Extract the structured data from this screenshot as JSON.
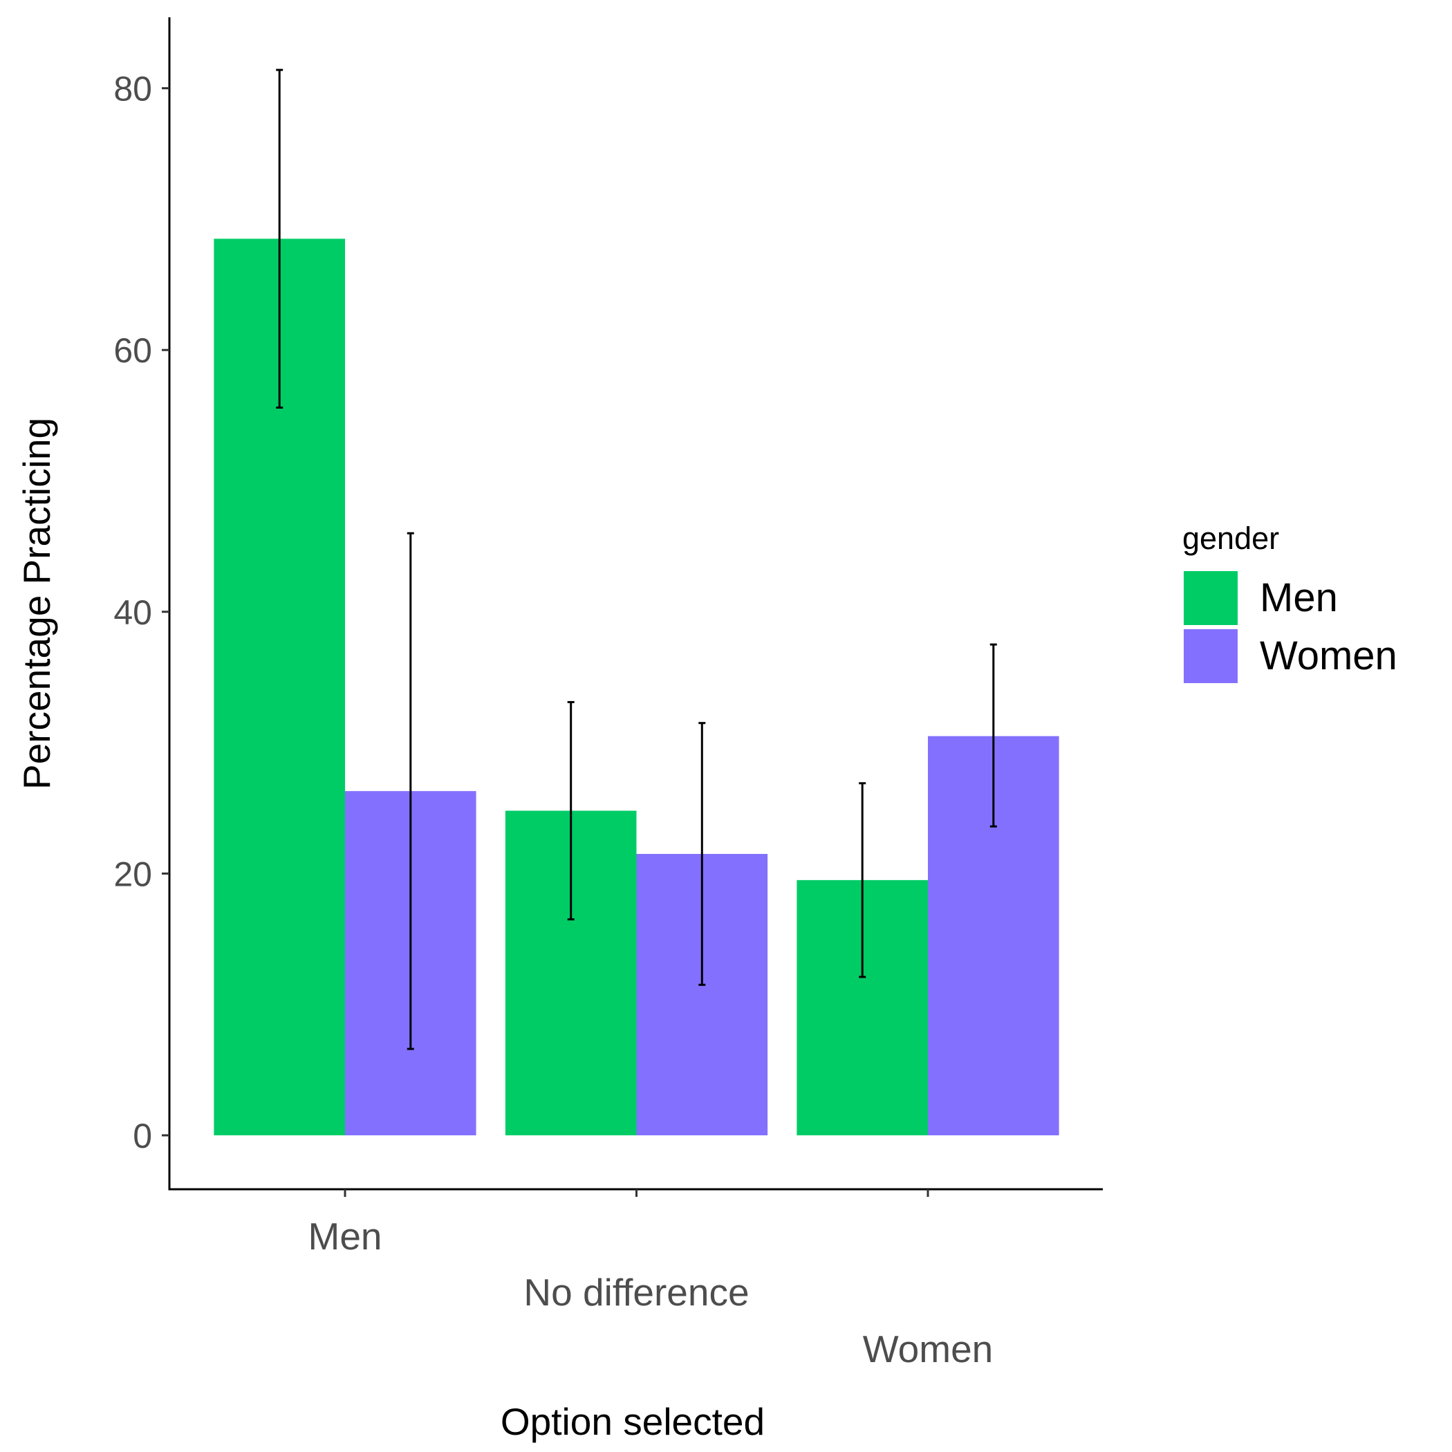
{
  "chart_data": {
    "type": "bar",
    "title": "",
    "xlabel": "Option selected",
    "ylabel": "Percentage Practicing",
    "categories": [
      "Men",
      "No difference",
      "Women"
    ],
    "series": [
      {
        "name": "Men",
        "color": "#00CC66",
        "values": [
          68.5,
          24.8,
          19.5
        ],
        "error_low": [
          55.6,
          16.5,
          12.1
        ],
        "error_high": [
          81.4,
          33.1,
          26.9
        ]
      },
      {
        "name": "Women",
        "color": "#8470FF",
        "values": [
          26.3,
          21.5,
          30.5
        ],
        "error_low": [
          6.6,
          11.5,
          23.6
        ],
        "error_high": [
          46.0,
          31.5,
          37.5
        ]
      }
    ],
    "ylim": [
      -4,
      85
    ],
    "yticks": [
      "0",
      "20",
      "40",
      "60",
      "80"
    ],
    "legend": {
      "title": "gender",
      "position": "right"
    },
    "grid": false
  }
}
